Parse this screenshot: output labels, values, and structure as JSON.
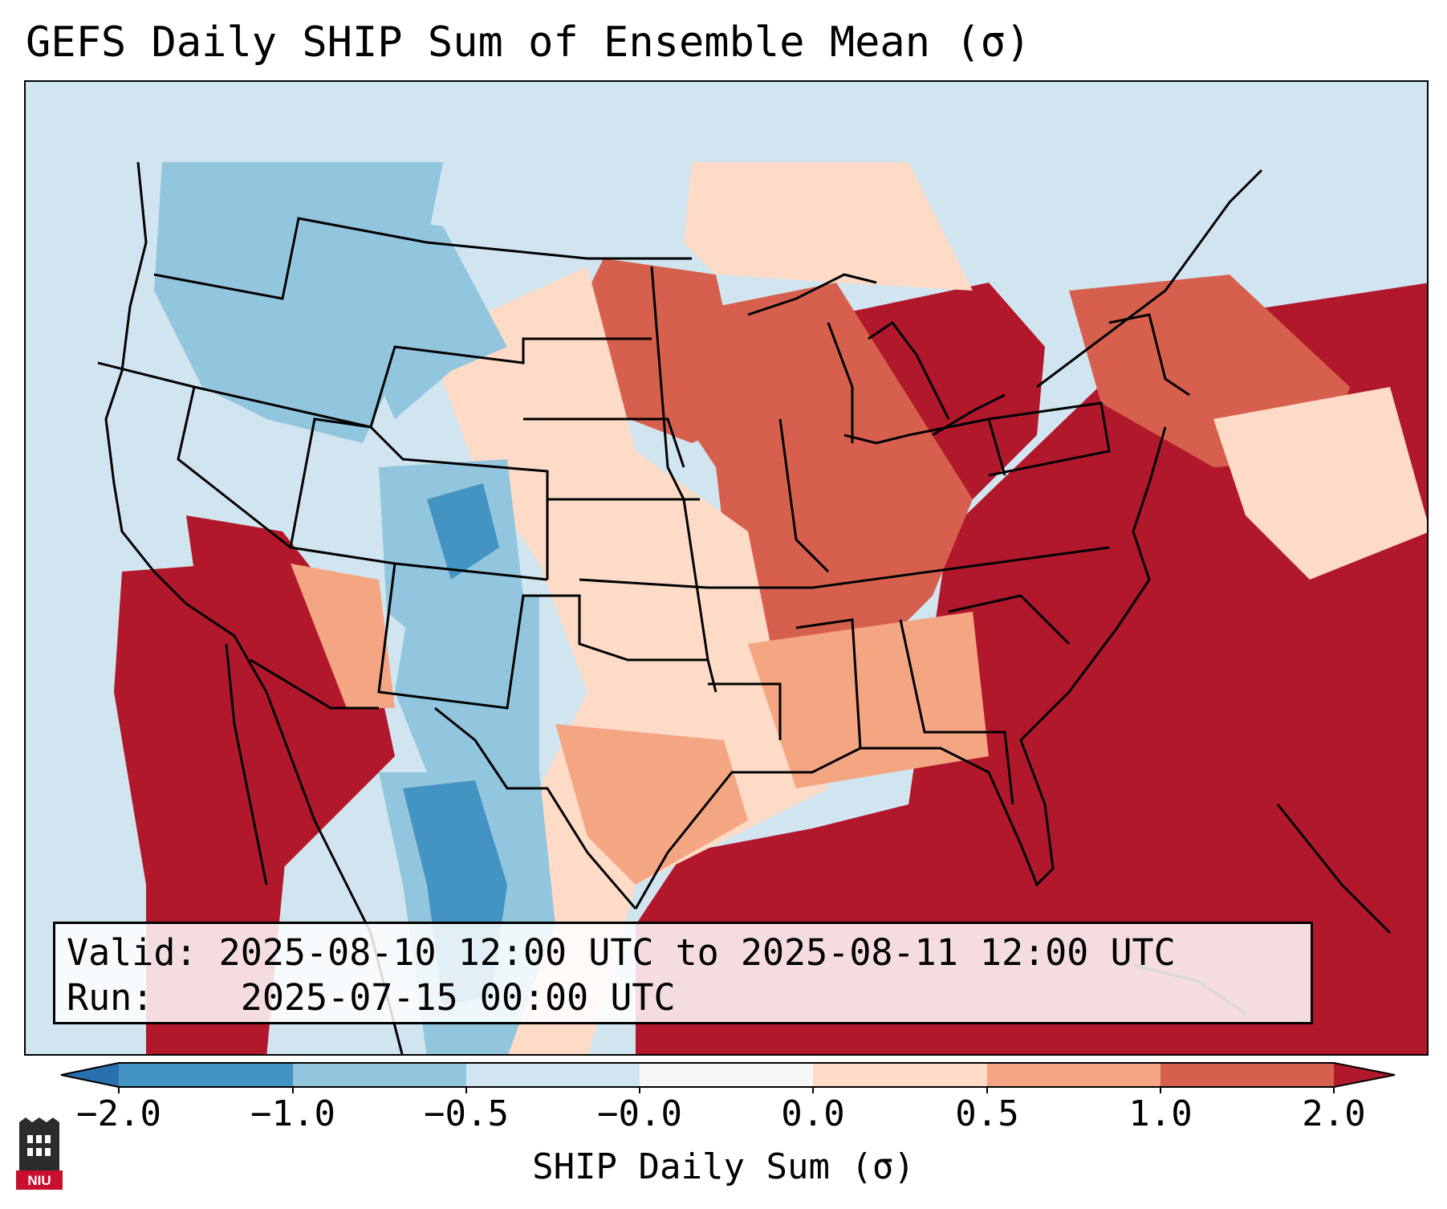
{
  "title": "GEFS Daily SHIP Sum of Ensemble Mean (σ)",
  "info": {
    "valid_label": "Valid:",
    "valid_value": "2025-08-10 12:00 UTC to 2025-08-11 12:00 UTC",
    "run_label": "Run:",
    "run_value": "2025-07-15 00:00 UTC"
  },
  "colorbar": {
    "label": "SHIP Daily Sum (σ)",
    "ticks": [
      "−2.0",
      "−1.0",
      "−0.5",
      "−0.0",
      "0.0",
      "0.5",
      "1.0",
      "2.0"
    ],
    "colors": [
      "#2a6fae",
      "#4393c3",
      "#92c5de",
      "#d1e5f0",
      "#f7f7f7",
      "#fddbc7",
      "#f4a582",
      "#d6604d",
      "#b2182b"
    ],
    "extend": "both"
  },
  "logo": {
    "text": "NIU",
    "color": "#c8102e"
  }
}
